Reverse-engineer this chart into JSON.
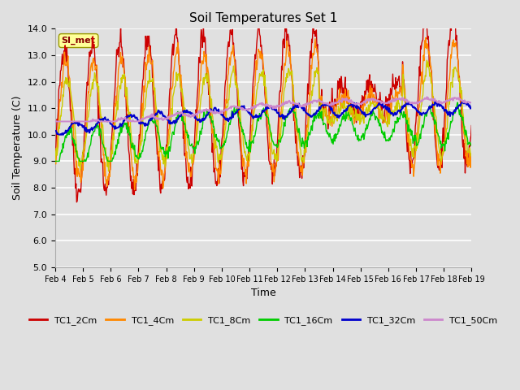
{
  "title": "Soil Temperatures Set 1",
  "xlabel": "Time",
  "ylabel": "Soil Temperature (C)",
  "ylim": [
    5.0,
    14.0
  ],
  "yticks": [
    5.0,
    6.0,
    7.0,
    8.0,
    9.0,
    10.0,
    11.0,
    12.0,
    13.0,
    14.0
  ],
  "bg_color": "#e0e0e0",
  "grid_color": "#ffffff",
  "series_colors": {
    "TC1_2Cm": "#cc0000",
    "TC1_4Cm": "#ff8800",
    "TC1_8Cm": "#cccc00",
    "TC1_16Cm": "#00cc00",
    "TC1_32Cm": "#0000cc",
    "TC1_50Cm": "#cc88cc"
  },
  "annotation_text": "SI_met",
  "annotation_color": "#880000",
  "annotation_bg": "#ffff99",
  "x_ticklabels": [
    "Feb 4",
    "Feb 5",
    "Feb 6",
    "Feb 7",
    "Feb 8",
    "Feb 9",
    "Feb 10",
    "Feb 11",
    "Feb 12",
    "Feb 13",
    "Feb 14",
    "Feb 15",
    "Feb 16",
    "Feb 17",
    "Feb 18",
    "Feb 19"
  ],
  "n_points": 720
}
